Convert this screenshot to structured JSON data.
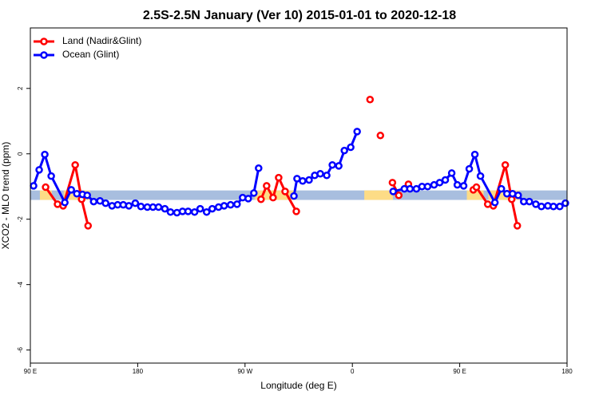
{
  "chart_data": {
    "type": "line",
    "title": "2.5S-2.5N January (Ver 10)   2015-01-01 to 2020-12-18",
    "x_label": "Longitude (deg E)",
    "y_label": "XCO2 - MLO trend (ppm)",
    "xlim": [
      90,
      540
    ],
    "ylim": [
      -6.4,
      3.85
    ],
    "xticks": [
      {
        "value": 90,
        "label": "90 E"
      },
      180,
      {
        "value": 270,
        "label": "90 W"
      },
      {
        "value": 360,
        "label": "0"
      },
      {
        "value": 450,
        "label": "90 E"
      },
      {
        "value": 540,
        "label": "180"
      }
    ],
    "yticks": [
      -6,
      -4,
      -2,
      0,
      2
    ],
    "legend": "top-left",
    "band": {
      "ylim": [
        -1.41,
        -1.12
      ],
      "ocean_color": "#a8bedf",
      "land_color": "#fddc86",
      "land": [
        [
          98,
          108
        ],
        [
          118,
          140
        ],
        [
          278,
          313
        ],
        [
          370,
          394
        ],
        [
          456,
          470
        ],
        [
          474,
          500
        ]
      ]
    },
    "series": [
      {
        "name": "Land (Nadir&Glint)",
        "color": "#ff0000",
        "x": [
          102.8,
          112.8,
          117.5,
          127.6,
          133.0,
          138.4,
          null,
          283.4,
          288.1,
          293.5,
          298.2,
          303.6,
          313.0,
          null,
          374.8,
          null,
          383.5,
          null,
          393.6,
          398.9,
          null,
          407.0,
          null,
          461.4,
          464.0,
          473.5,
          478.2,
          488.2,
          493.6,
          498.3
        ],
        "values": [
          -1.02,
          -1.54,
          -1.59,
          -0.34,
          -1.39,
          -2.2,
          null,
          -1.39,
          -0.98,
          -1.34,
          -0.73,
          -1.15,
          -1.76,
          null,
          1.66,
          null,
          0.56,
          null,
          -0.88,
          -1.27,
          null,
          -0.93,
          null,
          -1.1,
          -1.02,
          -1.54,
          -1.59,
          -0.34,
          -1.39,
          -2.2
        ]
      },
      {
        "name": "Ocean (Glint)",
        "color": "#0000ff",
        "x": [
          92.7,
          97.4,
          102.1,
          107.5,
          118.9,
          124.3,
          129.0,
          133.7,
          137.7,
          143.1,
          148.4,
          153.1,
          158.5,
          163.2,
          167.9,
          172.6,
          178.0,
          182.7,
          188.1,
          192.8,
          197.5,
          202.8,
          207.5,
          212.9,
          217.6,
          222.3,
          227.7,
          232.4,
          237.8,
          242.5,
          247.8,
          252.5,
          257.9,
          263.3,
          268.0,
          272.7,
          277.4,
          281.4,
          null,
          311.0,
          313.6,
          318.3,
          323.7,
          328.4,
          333.1,
          338.5,
          343.2,
          348.6,
          353.3,
          358.6,
          364.0,
          null,
          394.2,
          403.6,
          408.3,
          413.7,
          418.4,
          423.1,
          428.5,
          433.2,
          437.9,
          443.3,
          448.0,
          453.3,
          458.0,
          462.7,
          467.4,
          479.5,
          484.9,
          489.6,
          494.3,
          499.0,
          503.7,
          508.4,
          513.8,
          518.5,
          523.9,
          528.6,
          533.9,
          538.6
        ],
        "values": [
          -0.98,
          -0.49,
          -0.02,
          -0.68,
          -1.49,
          -1.1,
          -1.22,
          -1.24,
          -1.27,
          -1.46,
          -1.44,
          -1.51,
          -1.59,
          -1.56,
          -1.56,
          -1.59,
          -1.51,
          -1.61,
          -1.63,
          -1.63,
          -1.63,
          -1.68,
          -1.78,
          -1.8,
          -1.76,
          -1.76,
          -1.78,
          -1.68,
          -1.78,
          -1.68,
          -1.63,
          -1.59,
          -1.56,
          -1.54,
          -1.34,
          -1.37,
          -1.2,
          -0.44,
          null,
          -1.29,
          -0.76,
          -0.83,
          -0.8,
          -0.66,
          -0.61,
          -0.66,
          -0.34,
          -0.37,
          0.1,
          0.2,
          0.68,
          null,
          -1.15,
          -1.07,
          -1.07,
          -1.07,
          -1.0,
          -1.0,
          -0.95,
          -0.88,
          -0.8,
          -0.59,
          -0.95,
          -0.98,
          -0.46,
          -0.02,
          -0.68,
          -1.49,
          -1.07,
          -1.22,
          -1.22,
          -1.27,
          -1.46,
          -1.46,
          -1.54,
          -1.61,
          -1.59,
          -1.61,
          -1.61,
          -1.51
        ]
      }
    ]
  }
}
